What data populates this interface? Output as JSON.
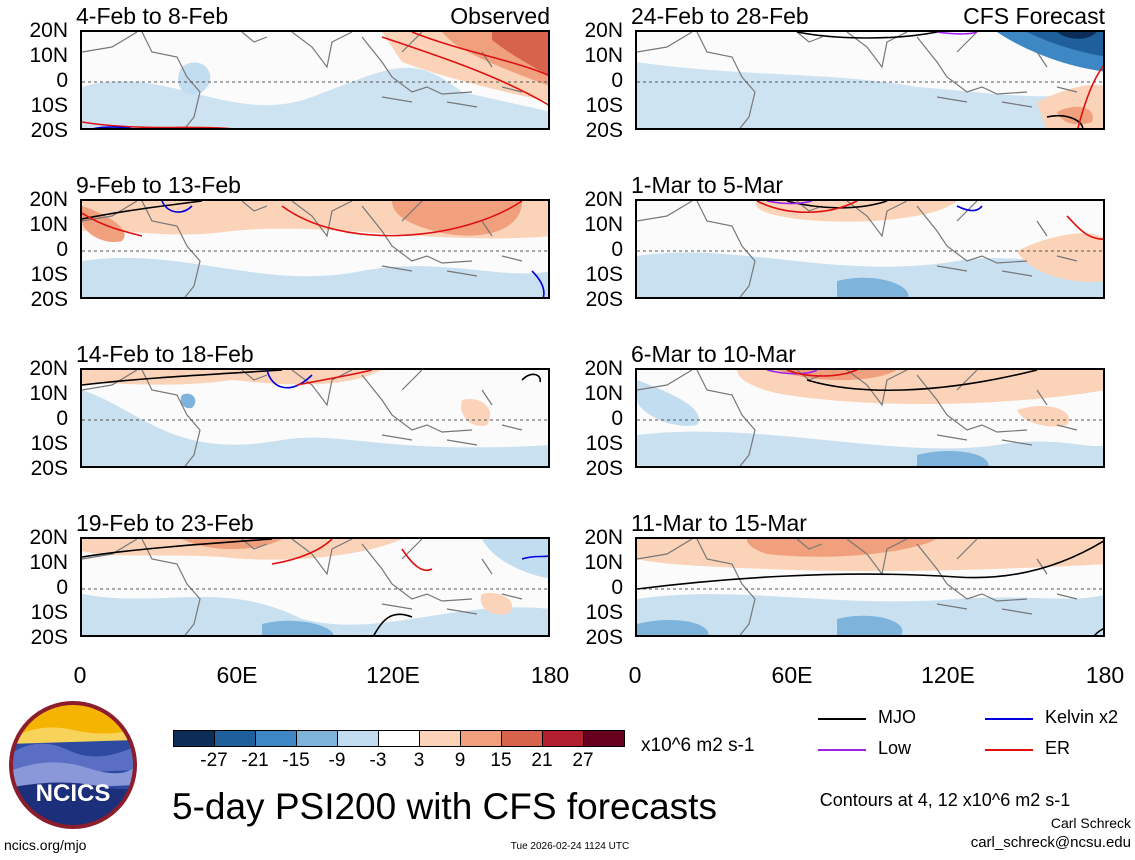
{
  "panels": [
    {
      "title": "4-Feb to 8-Feb",
      "tag": "Observed",
      "side": "left",
      "row": 0
    },
    {
      "title": "9-Feb to 13-Feb",
      "tag": "",
      "side": "left",
      "row": 1
    },
    {
      "title": "14-Feb to 18-Feb",
      "tag": "",
      "side": "left",
      "row": 2
    },
    {
      "title": "19-Feb to 23-Feb",
      "tag": "",
      "side": "left",
      "row": 3
    },
    {
      "title": "24-Feb to 28-Feb",
      "tag": "CFS Forecast",
      "side": "right",
      "row": 0
    },
    {
      "title": "1-Mar to 5-Mar",
      "tag": "",
      "side": "right",
      "row": 1
    },
    {
      "title": "6-Mar to 10-Mar",
      "tag": "",
      "side": "right",
      "row": 2
    },
    {
      "title": "11-Mar to 15-Mar",
      "tag": "",
      "side": "right",
      "row": 3
    }
  ],
  "lat_labels": [
    "20N",
    "10N",
    "0",
    "10S",
    "20S"
  ],
  "lon_labels": [
    "0",
    "60E",
    "120E",
    "180"
  ],
  "colorbar": {
    "ticks": [
      "-27",
      "-21",
      "-15",
      "-9",
      "-3",
      "3",
      "9",
      "15",
      "21",
      "27"
    ],
    "colors": [
      "#0b2d57",
      "#1f5f9b",
      "#3d88c4",
      "#7eb3dc",
      "#c3ddf0",
      "#ffffff",
      "#fbd3b9",
      "#f0a07c",
      "#d8634c",
      "#b21f2e",
      "#67001f"
    ],
    "units": "x10^6 m2 s-1"
  },
  "legend": [
    {
      "label": "MJO",
      "color": "#000000"
    },
    {
      "label": "Kelvin x2",
      "color": "#0000dd"
    },
    {
      "label": "Low",
      "color": "#a020f0"
    },
    {
      "label": "ER",
      "color": "#e01010"
    }
  ],
  "logo_text": "NCICS",
  "main_title": "5-day PSI200 with CFS forecasts",
  "contours_note": "Contours at 4, 12 x10^6 m2 s-1",
  "author": "Carl Schreck",
  "email": "carl_schreck@ncsu.edu",
  "site": "ncics.org/mjo",
  "timestamp": "Tue 2026-02-24 1124 UTC"
}
